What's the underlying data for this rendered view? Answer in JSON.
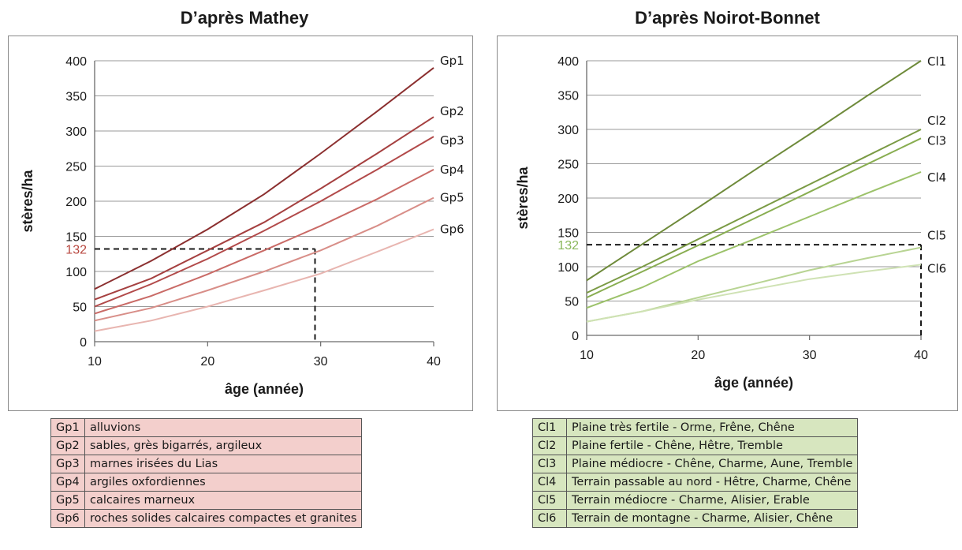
{
  "charts": [
    {
      "id": "left",
      "title": "D’après Mathey",
      "xlabel": "âge (année)",
      "ylabel": "stères/ha",
      "highlight": {
        "label": "132",
        "y": 132,
        "x": 29.5,
        "color": "#b8473f"
      },
      "legend": [
        {
          "code": "Gp1",
          "text": "alluvions"
        },
        {
          "code": "Gp2",
          "text": "sables, grès bigarrés, argileux"
        },
        {
          "code": "Gp3",
          "text": "marnes irisées du Lias"
        },
        {
          "code": "Gp4",
          "text": "argiles oxfordiennes"
        },
        {
          "code": "Gp5",
          "text": "calcaires marneux"
        },
        {
          "code": "Gp6",
          "text": "roches solides calcaires compactes et granites"
        }
      ]
    },
    {
      "id": "right",
      "title": "D’après Noirot-Bonnet",
      "xlabel": "âge (année)",
      "ylabel": "stères/ha",
      "highlight": {
        "label": "132",
        "y": 132,
        "x": 40,
        "color": "#8ab75a"
      },
      "legend": [
        {
          "code": "Cl1",
          "text": "Plaine très fertile - Orme, Frêne, Chêne"
        },
        {
          "code": "Cl2",
          "text": "Plaine fertile - Chêne, Hêtre, Tremble"
        },
        {
          "code": "Cl3",
          "text": "Plaine médiocre - Chêne, Charme, Aune, Tremble"
        },
        {
          "code": "Cl4",
          "text": "Terrain passable au nord - Hêtre, Charme, Chêne"
        },
        {
          "code": "Cl5",
          "text": "Terrain médiocre - Charme, Alisier, Erable"
        },
        {
          "code": "Cl6",
          "text": "Terrain de montagne - Charme, Alisier, Chêne"
        }
      ]
    }
  ],
  "chart_data": [
    {
      "type": "line",
      "title": "D’après Mathey",
      "xlabel": "âge (année)",
      "ylabel": "stères/ha",
      "x": [
        10,
        15,
        20,
        25,
        30,
        35,
        40
      ],
      "xlim": [
        10,
        40
      ],
      "ylim": [
        0,
        400
      ],
      "xticks": [
        10,
        20,
        30,
        40
      ],
      "yticks": [
        0,
        50,
        100,
        150,
        200,
        250,
        300,
        350,
        400
      ],
      "grid": "horizontal",
      "series": [
        {
          "name": "Gp1",
          "color": "#8b2f2f",
          "values": [
            75,
            115,
            160,
            210,
            268,
            328,
            390
          ]
        },
        {
          "name": "Gp2",
          "color": "#a54040",
          "values": [
            60,
            90,
            130,
            170,
            218,
            268,
            320
          ]
        },
        {
          "name": "Gp3",
          "color": "#b24a4a",
          "values": [
            50,
            82,
            118,
            158,
            200,
            245,
            292
          ]
        },
        {
          "name": "Gp4",
          "color": "#c96a66",
          "values": [
            40,
            65,
            96,
            130,
            165,
            203,
            245
          ]
        },
        {
          "name": "Gp5",
          "color": "#d88e88",
          "values": [
            30,
            48,
            73,
            100,
            130,
            165,
            205
          ]
        },
        {
          "name": "Gp6",
          "color": "#e8b5b0",
          "values": [
            15,
            30,
            50,
            73,
            97,
            128,
            160
          ]
        }
      ]
    },
    {
      "type": "line",
      "title": "D’après Noirot-Bonnet",
      "xlabel": "âge (année)",
      "ylabel": "stères/ha",
      "x": [
        10,
        15,
        20,
        25,
        30,
        35,
        40
      ],
      "xlim": [
        10,
        40
      ],
      "ylim": [
        0,
        400
      ],
      "xticks": [
        10,
        20,
        30,
        40
      ],
      "yticks": [
        0,
        50,
        100,
        150,
        200,
        250,
        300,
        350,
        400
      ],
      "grid": "horizontal",
      "series": [
        {
          "name": "Cl1",
          "color": "#6e8a3a",
          "values": [
            80,
            133,
            186,
            240,
            293,
            347,
            400
          ]
        },
        {
          "name": "Cl2",
          "color": "#7a9a44",
          "values": [
            62,
            100,
            140,
            180,
            220,
            260,
            300
          ]
        },
        {
          "name": "Cl3",
          "color": "#88ad50",
          "values": [
            55,
            93,
            131,
            170,
            209,
            248,
            287
          ]
        },
        {
          "name": "Cl4",
          "color": "#9cc26a",
          "values": [
            40,
            70,
            108,
            140,
            173,
            206,
            238
          ]
        },
        {
          "name": "Cl5",
          "color": "#b8d493",
          "values": [
            20,
            35,
            55,
            75,
            95,
            112,
            128
          ]
        },
        {
          "name": "Cl6",
          "color": "#cfe2b4",
          "values": [
            20,
            35,
            52,
            67,
            82,
            93,
            103
          ]
        }
      ]
    }
  ]
}
